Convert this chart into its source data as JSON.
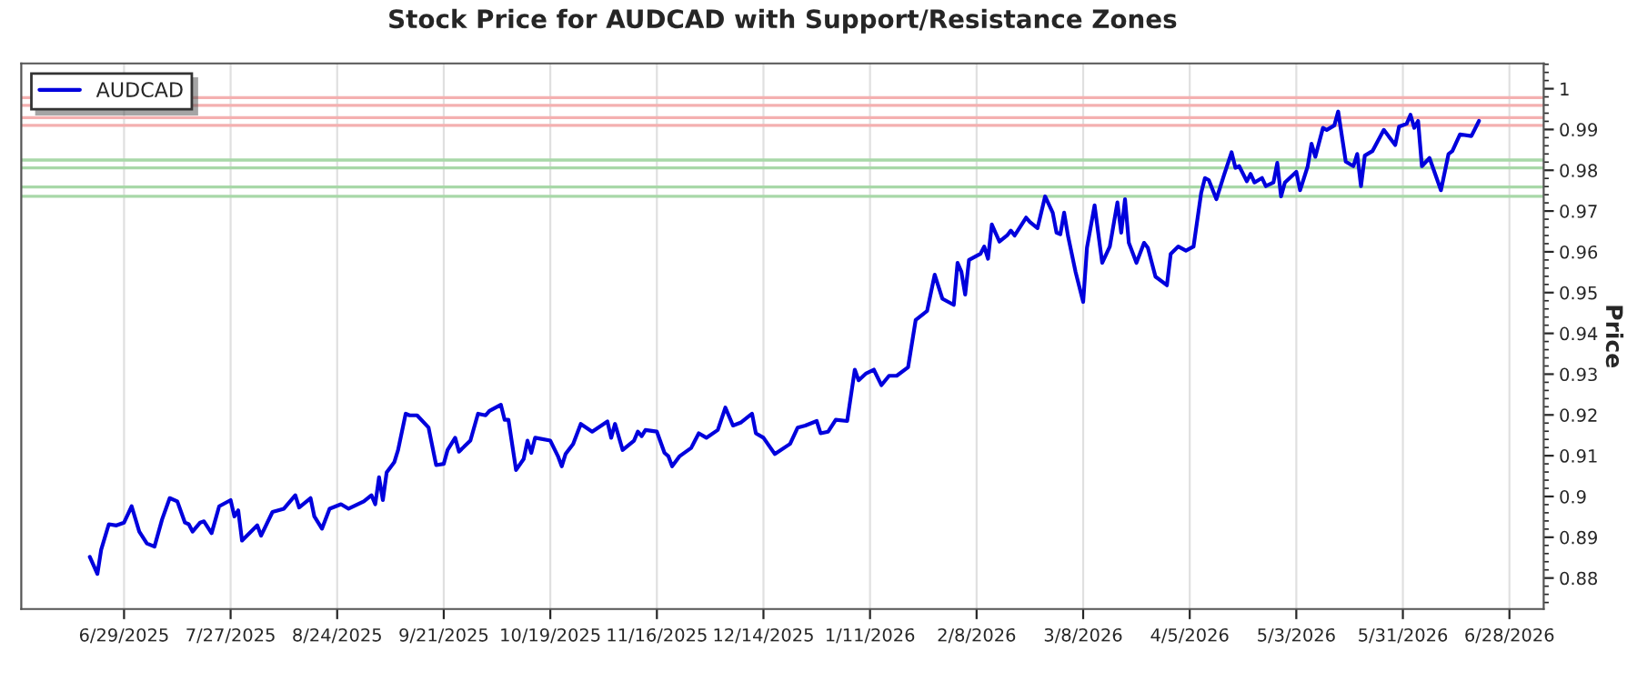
{
  "chart_data": {
    "type": "line",
    "title": "Stock Price for AUDCAD with Support/Resistance Zones",
    "ylabel": "Price",
    "xlim": [
      "2025-06-02",
      "2026-07-07"
    ],
    "xticks": [
      {
        "value": "2025-06-29",
        "label": "6/29/2025"
      },
      {
        "value": "2025-07-27",
        "label": "7/27/2025"
      },
      {
        "value": "2025-08-24",
        "label": "8/24/2025"
      },
      {
        "value": "2025-09-21",
        "label": "9/21/2025"
      },
      {
        "value": "2025-10-19",
        "label": "10/19/2025"
      },
      {
        "value": "2025-11-16",
        "label": "11/16/2025"
      },
      {
        "value": "2025-12-14",
        "label": "12/14/2025"
      },
      {
        "value": "2026-01-11",
        "label": "1/11/2026"
      },
      {
        "value": "2026-02-08",
        "label": "2/8/2026"
      },
      {
        "value": "2026-03-08",
        "label": "3/8/2026"
      },
      {
        "value": "2026-04-05",
        "label": "4/5/2026"
      },
      {
        "value": "2026-05-03",
        "label": "5/3/2026"
      },
      {
        "value": "2026-05-31",
        "label": "5/31/2026"
      },
      {
        "value": "2026-06-28",
        "label": "6/28/2026"
      }
    ],
    "ylim": [
      0.8724,
      1.0062
    ],
    "yticks": [
      0.88,
      0.89,
      {
        "value": 0.9,
        "label": "0.9"
      },
      0.91,
      0.92,
      0.93,
      0.94,
      0.95,
      0.96,
      0.97,
      0.98,
      0.99,
      {
        "value": 1.0,
        "label": "1"
      }
    ],
    "grid": "x",
    "legend": "top left",
    "marker": "none",
    "line_style": "solid",
    "x": [
      "2025-06-20",
      "2025-06-22",
      "2025-06-23",
      "2025-06-25",
      "2025-06-27",
      "2025-06-29",
      "2025-07-01",
      "2025-07-03",
      "2025-07-05",
      "2025-07-07",
      "2025-07-09",
      "2025-07-11",
      "2025-07-13",
      "2025-07-15",
      "2025-07-16",
      "2025-07-17",
      "2025-07-19",
      "2025-07-20",
      "2025-07-22",
      "2025-07-24",
      "2025-07-27",
      "2025-07-28",
      "2025-07-29",
      "2025-07-30",
      "2025-08-03",
      "2025-08-04",
      "2025-08-07",
      "2025-08-10",
      "2025-08-13",
      "2025-08-14",
      "2025-08-17",
      "2025-08-18",
      "2025-08-20",
      "2025-08-22",
      "2025-08-25",
      "2025-08-27",
      "2025-08-31",
      "2025-09-02",
      "2025-09-03",
      "2025-09-04",
      "2025-09-05",
      "2025-09-06",
      "2025-09-08",
      "2025-09-09",
      "2025-09-11",
      "2025-09-12",
      "2025-09-14",
      "2025-09-17",
      "2025-09-19",
      "2025-09-21",
      "2025-09-22",
      "2025-09-24",
      "2025-09-25",
      "2025-09-28",
      "2025-09-30",
      "2025-10-02",
      "2025-10-03",
      "2025-10-06",
      "2025-10-07",
      "2025-10-08",
      "2025-10-10",
      "2025-10-12",
      "2025-10-13",
      "2025-10-14",
      "2025-10-15",
      "2025-10-19",
      "2025-10-21",
      "2025-10-22",
      "2025-10-23",
      "2025-10-25",
      "2025-10-27",
      "2025-10-30",
      "2025-11-03",
      "2025-11-04",
      "2025-11-05",
      "2025-11-07",
      "2025-11-10",
      "2025-11-11",
      "2025-11-12",
      "2025-11-13",
      "2025-11-16",
      "2025-11-18",
      "2025-11-19",
      "2025-11-20",
      "2025-11-22",
      "2025-11-25",
      "2025-11-27",
      "2025-11-29",
      "2025-12-02",
      "2025-12-04",
      "2025-12-06",
      "2025-12-08",
      "2025-12-11",
      "2025-12-12",
      "2025-12-14",
      "2025-12-17",
      "2025-12-21",
      "2025-12-23",
      "2025-12-25",
      "2025-12-28",
      "2025-12-29",
      "2025-12-31",
      "2026-01-02",
      "2026-01-05",
      "2026-01-07",
      "2026-01-08",
      "2026-01-10",
      "2026-01-12",
      "2026-01-14",
      "2026-01-16",
      "2026-01-18",
      "2026-01-21",
      "2026-01-23",
      "2026-01-26",
      "2026-01-28",
      "2026-01-30",
      "2026-02-02",
      "2026-02-03",
      "2026-02-04",
      "2026-02-05",
      "2026-02-06",
      "2026-02-09",
      "2026-02-10",
      "2026-02-11",
      "2026-02-12",
      "2026-02-14",
      "2026-02-16",
      "2026-02-17",
      "2026-02-18",
      "2026-02-21",
      "2026-02-22",
      "2026-02-24",
      "2026-02-26",
      "2026-02-28",
      "2026-03-01",
      "2026-03-02",
      "2026-03-03",
      "2026-03-04",
      "2026-03-06",
      "2026-03-08",
      "2026-03-09",
      "2026-03-11",
      "2026-03-13",
      "2026-03-15",
      "2026-03-17",
      "2026-03-18",
      "2026-03-19",
      "2026-03-20",
      "2026-03-22",
      "2026-03-24",
      "2026-03-25",
      "2026-03-27",
      "2026-03-30",
      "2026-03-31",
      "2026-04-02",
      "2026-04-04",
      "2026-04-06",
      "2026-04-08",
      "2026-04-09",
      "2026-04-10",
      "2026-04-12",
      "2026-04-14",
      "2026-04-16",
      "2026-04-17",
      "2026-04-18",
      "2026-04-20",
      "2026-04-21",
      "2026-04-22",
      "2026-04-24",
      "2026-04-25",
      "2026-04-27",
      "2026-04-28",
      "2026-04-29",
      "2026-04-30",
      "2026-05-03",
      "2026-05-04",
      "2026-05-06",
      "2026-05-07",
      "2026-05-08",
      "2026-05-10",
      "2026-05-11",
      "2026-05-13",
      "2026-05-14",
      "2026-05-16",
      "2026-05-18",
      "2026-05-19",
      "2026-05-20",
      "2026-05-21",
      "2026-05-23",
      "2026-05-26",
      "2026-05-29",
      "2026-05-30",
      "2026-06-01",
      "2026-06-02",
      "2026-06-03",
      "2026-06-04",
      "2026-06-05",
      "2026-06-07",
      "2026-06-10",
      "2026-06-12",
      "2026-06-13",
      "2026-06-15",
      "2026-06-18",
      "2026-06-20"
    ],
    "series": [
      {
        "name": "AUDCAD",
        "color": "#0000dd",
        "values": [
          0.8852,
          0.881,
          0.887,
          0.8932,
          0.8929,
          0.8936,
          0.8976,
          0.8914,
          0.8885,
          0.8877,
          0.8944,
          0.8996,
          0.8988,
          0.8936,
          0.8932,
          0.8914,
          0.8936,
          0.8939,
          0.891,
          0.8976,
          0.8991,
          0.8951,
          0.8966,
          0.8892,
          0.8929,
          0.8904,
          0.8962,
          0.897,
          0.9003,
          0.8973,
          0.8996,
          0.8951,
          0.8921,
          0.897,
          0.8981,
          0.897,
          0.8988,
          0.9003,
          0.8981,
          0.9047,
          0.8991,
          0.9059,
          0.9084,
          0.9114,
          0.9203,
          0.9199,
          0.9199,
          0.9169,
          0.9077,
          0.908,
          0.9114,
          0.9144,
          0.911,
          0.9137,
          0.9203,
          0.9199,
          0.921,
          0.9225,
          0.9188,
          0.9188,
          0.9065,
          0.9092,
          0.9137,
          0.9107,
          0.9144,
          0.9137,
          0.9099,
          0.9074,
          0.9104,
          0.9129,
          0.9178,
          0.9159,
          0.9184,
          0.9144,
          0.9178,
          0.9114,
          0.9137,
          0.9159,
          0.9148,
          0.9163,
          0.9159,
          0.9107,
          0.9099,
          0.9074,
          0.9099,
          0.9119,
          0.9155,
          0.9144,
          0.9163,
          0.9218,
          0.9174,
          0.9181,
          0.9203,
          0.9155,
          0.9144,
          0.9104,
          0.9129,
          0.9169,
          0.9174,
          0.9185,
          0.9155,
          0.9159,
          0.9188,
          0.9185,
          0.9311,
          0.9285,
          0.9302,
          0.9311,
          0.9273,
          0.9296,
          0.9296,
          0.9317,
          0.9433,
          0.9455,
          0.9544,
          0.9485,
          0.947,
          0.9573,
          0.9551,
          0.9495,
          0.958,
          0.9595,
          0.9613,
          0.9583,
          0.9667,
          0.9625,
          0.964,
          0.9652,
          0.964,
          0.9684,
          0.9673,
          0.9658,
          0.9736,
          0.9696,
          0.9647,
          0.9643,
          0.9696,
          0.964,
          0.9551,
          0.9477,
          0.961,
          0.9714,
          0.9573,
          0.9613,
          0.9721,
          0.9647,
          0.9729,
          0.9622,
          0.9573,
          0.9622,
          0.961,
          0.9539,
          0.9518,
          0.9595,
          0.9613,
          0.9603,
          0.9613,
          0.9744,
          0.9781,
          0.9776,
          0.9729,
          0.9788,
          0.9844,
          0.9806,
          0.981,
          0.9773,
          0.9791,
          0.977,
          0.9781,
          0.9761,
          0.977,
          0.9818,
          0.9736,
          0.977,
          0.9796,
          0.9751,
          0.981,
          0.9865,
          0.9833,
          0.9904,
          0.9899,
          0.991,
          0.9944,
          0.9821,
          0.981,
          0.984,
          0.9761,
          0.9836,
          0.9847,
          0.9899,
          0.9862,
          0.9907,
          0.9914,
          0.9936,
          0.9904,
          0.9921,
          0.981,
          0.983,
          0.9751,
          0.984,
          0.9847,
          0.9888,
          0.9884,
          0.9921
        ]
      }
    ],
    "ref_lines": [
      {
        "axis": "y",
        "value": 0.9978,
        "color": "#f4b0b0"
      },
      {
        "axis": "y",
        "value": 0.9959,
        "color": "#f4b0b0"
      },
      {
        "axis": "y",
        "value": 0.9929,
        "color": "#f4b0b0"
      },
      {
        "axis": "y",
        "value": 0.991,
        "color": "#f4b0b0"
      },
      {
        "axis": "y",
        "value": 0.9825,
        "color": "#a8d8a8"
      },
      {
        "axis": "y",
        "value": 0.9806,
        "color": "#a8d8a8"
      },
      {
        "axis": "y",
        "value": 0.9759,
        "color": "#a8d8a8"
      },
      {
        "axis": "y",
        "value": 0.9736,
        "color": "#a8d8a8"
      }
    ]
  }
}
